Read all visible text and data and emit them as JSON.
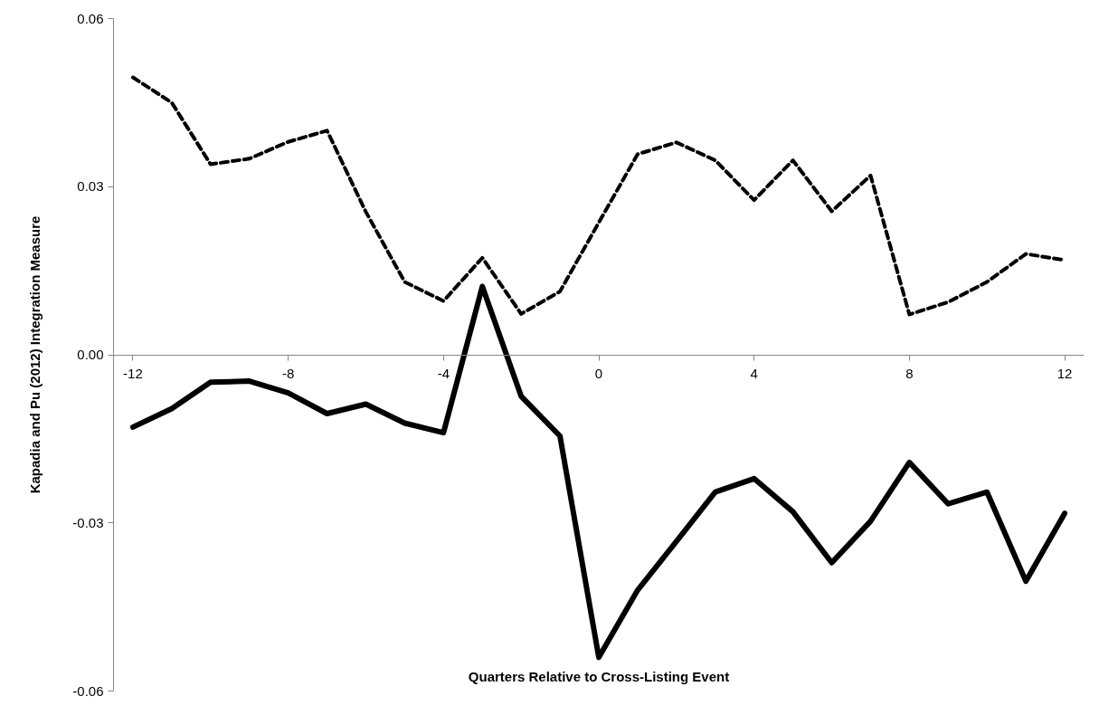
{
  "chart_data": {
    "type": "line",
    "ylabel": "Kapadia and Pu (2012) Integration Measure",
    "xlabel": "Quarters Relative to Cross-Listing Event",
    "x": [
      -12,
      -11,
      -10,
      -9,
      -8,
      -7,
      -6,
      -5,
      -4,
      -3,
      -2,
      -1,
      0,
      1,
      2,
      3,
      4,
      5,
      6,
      7,
      8,
      9,
      10,
      11,
      12
    ],
    "xlim": [
      -12.5,
      12.5
    ],
    "xticks": [
      -12,
      -8,
      -4,
      0,
      4,
      8,
      12
    ],
    "ylim": [
      -0.06,
      0.06
    ],
    "yticks": [
      {
        "value": -0.06,
        "label": "-0.06"
      },
      {
        "value": -0.03,
        "label": "-0.03"
      },
      {
        "value": 0,
        "label": "0.00"
      },
      {
        "value": 0.03,
        "label": "0.03"
      },
      {
        "value": 0.06,
        "label": "0.06"
      }
    ],
    "grid": false,
    "series": [
      {
        "color": "#000000",
        "line_style": "dashed",
        "values": [
          0.0495,
          0.045,
          0.034,
          0.035,
          0.038,
          0.04,
          0.0255,
          0.013,
          0.0096,
          0.0173,
          0.0073,
          0.0113,
          0.0236,
          0.0358,
          0.0379,
          0.0347,
          0.0276,
          0.0347,
          0.0256,
          0.032,
          0.0072,
          0.0094,
          0.013,
          0.018,
          0.0169
        ]
      },
      {
        "color": "#000000",
        "line_style": "solid",
        "values": [
          -0.0129,
          -0.0096,
          -0.0049,
          -0.0047,
          -0.0068,
          -0.0105,
          -0.0088,
          -0.0122,
          -0.0139,
          0.0122,
          -0.0074,
          -0.0145,
          -0.054,
          -0.042,
          -0.0333,
          -0.0245,
          -0.0221,
          -0.028,
          -0.0371,
          -0.0297,
          -0.0192,
          -0.0266,
          -0.0245,
          -0.0404,
          -0.0283
        ]
      }
    ]
  }
}
